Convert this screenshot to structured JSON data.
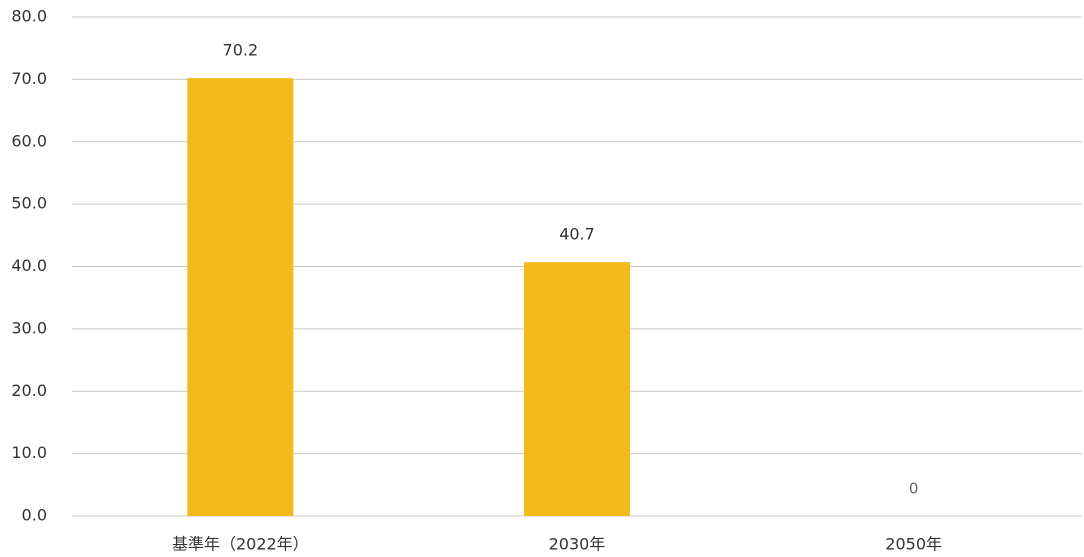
{
  "chart_data": {
    "type": "bar",
    "categories": [
      "基準年（2022年）",
      "2030年",
      "2050年"
    ],
    "values": [
      70.2,
      40.7,
      0
    ],
    "color": "#f4b91a",
    "ylim": [
      0,
      80
    ],
    "yticks": [
      {
        "value": 0,
        "label": "0.0"
      },
      {
        "value": 10,
        "label": "10.0"
      },
      {
        "value": 20,
        "label": "20.0"
      },
      {
        "value": 30,
        "label": "30.0"
      },
      {
        "value": 40,
        "label": "40.0"
      },
      {
        "value": 50,
        "label": "50.0"
      },
      {
        "value": 60,
        "label": "60.0"
      },
      {
        "value": 70,
        "label": "70.0"
      },
      {
        "value": 80,
        "label": "80.0"
      }
    ],
    "grid": true
  }
}
